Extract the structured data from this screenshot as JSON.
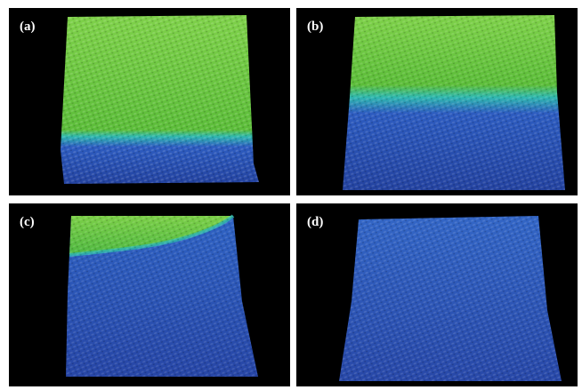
{
  "panels": [
    {
      "id": "a",
      "label": "(a)",
      "green_fraction": 0.72
    },
    {
      "id": "b",
      "label": "(b)",
      "green_fraction": 0.42
    },
    {
      "id": "c",
      "label": "(c)",
      "green_fraction": 0.2
    },
    {
      "id": "d",
      "label": "(d)",
      "green_fraction": 0.0
    }
  ],
  "colors": {
    "background": "#000000",
    "green": "#5fbf3a",
    "green_light": "#86d34e",
    "teal": "#2fb8b0",
    "blue": "#2a4fb4",
    "blue_dark": "#1f3a96"
  }
}
